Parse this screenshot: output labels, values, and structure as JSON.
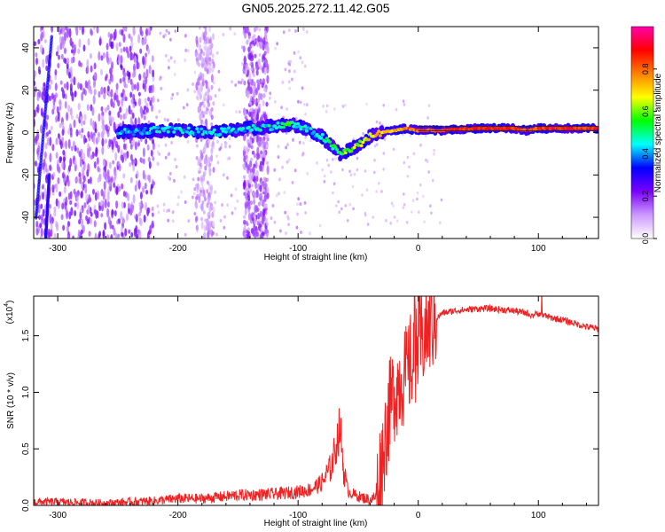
{
  "figure_title": "GN05.2025.272.11.42.G05",
  "chart_data": [
    {
      "type": "heatmap",
      "title": "",
      "xlabel": "Height of straight line (km)",
      "ylabel": "Frequency (Hz)",
      "xlim": [
        -320,
        150
      ],
      "ylim": [
        -50,
        50
      ],
      "xticks": [
        -300,
        -200,
        -100,
        0,
        100
      ],
      "xtick_labels": [
        "-300",
        "-200",
        "-100",
        "0",
        "100"
      ],
      "yticks": [
        -40,
        -20,
        0,
        20,
        40
      ],
      "ytick_labels": [
        "-40",
        "-20",
        "0",
        "20",
        "40"
      ],
      "colorbar": {
        "label": "Normalized spectral amplitude",
        "range": [
          0,
          1
        ],
        "ticks": [
          0.0,
          0.2,
          0.4,
          0.6,
          0.8
        ],
        "tick_labels": [
          "0.0",
          "0.2",
          "0.4",
          "0.6",
          "0.8"
        ],
        "colors": [
          "#ffffff",
          "#cc99ff",
          "#7a00ff",
          "#0000ff",
          "#00ffff",
          "#00ff00",
          "#ffff00",
          "#ff8000",
          "#ff0000",
          "#ff00aa"
        ]
      },
      "ridge": {
        "x": [
          -250,
          -220,
          -200,
          -170,
          -140,
          -120,
          -105,
          -95,
          -80,
          -65,
          -60,
          -50,
          -40,
          -30,
          -20,
          -10,
          0,
          20,
          50,
          80,
          90,
          100,
          150
        ],
        "y": [
          0,
          1,
          1,
          0,
          2,
          3,
          4,
          2,
          -2,
          -10,
          -9,
          -6,
          -2,
          0,
          1,
          2,
          1,
          1,
          2,
          2,
          1,
          2,
          2
        ],
        "amplitude": [
          0.45,
          0.5,
          0.5,
          0.5,
          0.5,
          0.55,
          0.6,
          0.5,
          0.55,
          0.6,
          0.65,
          0.7,
          0.75,
          0.8,
          0.8,
          0.85,
          0.9,
          0.95,
          0.95,
          0.95,
          0.9,
          0.95,
          0.95
        ]
      },
      "steep_line": {
        "x": [
          -318,
          -305
        ],
        "y": [
          -40,
          45
        ]
      }
    },
    {
      "type": "line",
      "title": "",
      "xlabel": "Height of straight line (km)",
      "ylabel": "SNR (10 * v/v)",
      "y_multiplier_label": "(x10",
      "y_multiplier_exponent": "4",
      "y_multiplier_close": ")",
      "xlim": [
        -320,
        150
      ],
      "ylim": [
        0,
        1.85
      ],
      "xticks": [
        -300,
        -200,
        -100,
        0,
        100
      ],
      "xtick_labels": [
        "-300",
        "-200",
        "-100",
        "0",
        "100"
      ],
      "yticks": [
        0.0,
        0.5,
        1.0,
        1.5
      ],
      "ytick_labels": [
        "0.0",
        "0.5",
        "1.0",
        "1.5"
      ],
      "line_color": "#ee2222",
      "series": [
        {
          "name": "SNR",
          "x": [
            -320,
            -300,
            -260,
            -220,
            -200,
            -180,
            -150,
            -120,
            -100,
            -90,
            -80,
            -72,
            -68,
            -65,
            -62,
            -58,
            -50,
            -40,
            -35,
            -30,
            -25,
            -20,
            -15,
            -10,
            -5,
            0,
            5,
            10,
            15,
            20,
            30,
            40,
            50,
            60,
            70,
            80,
            90,
            95,
            100,
            105,
            110,
            120,
            130,
            140,
            150
          ],
          "y": [
            0.03,
            0.03,
            0.02,
            0.04,
            0.06,
            0.06,
            0.09,
            0.1,
            0.12,
            0.14,
            0.2,
            0.35,
            0.55,
            0.7,
            0.3,
            0.12,
            0.08,
            0.05,
            0.08,
            0.4,
            0.8,
            1.0,
            1.1,
            1.15,
            1.3,
            1.4,
            1.5,
            1.6,
            1.65,
            1.7,
            1.72,
            1.73,
            1.74,
            1.74,
            1.73,
            1.72,
            1.7,
            1.68,
            1.7,
            1.68,
            1.66,
            1.64,
            1.61,
            1.58,
            1.56
          ]
        }
      ]
    }
  ]
}
